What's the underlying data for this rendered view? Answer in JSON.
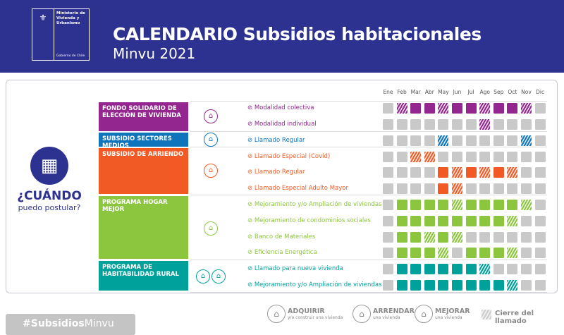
{
  "header": {
    "logo": {
      "ministry": "Ministerio de Vivienda y Urbanismo",
      "government": "Gobierno de Chile"
    },
    "title": "CALENDARIO Subsidios habitacionales",
    "subtitle": "Minvu 2021"
  },
  "left": {
    "icon": "calendar-icon",
    "title": "¿CUÁNDO",
    "subtitle": "puedo postular?"
  },
  "months": [
    "Ene",
    "Feb",
    "Mar",
    "Abr",
    "May",
    "Jun",
    "Jul",
    "Ago",
    "Sep",
    "Oct",
    "Nov",
    "Dic"
  ],
  "state_legend": {
    "0": "cerrado",
    "1": "abierto",
    "2": "cierre del llamado"
  },
  "categories": [
    {
      "name": "FONDO SOLIDARIO DE ELECCIÓN DE VIVIENDA",
      "color": "#93278f",
      "icon": "house-buy-icon",
      "items": [
        {
          "label": "Modalidad colectiva",
          "months": [
            0,
            2,
            1,
            1,
            2,
            1,
            1,
            2,
            1,
            1,
            2,
            0
          ]
        },
        {
          "label": "Modalidad individual",
          "months": [
            0,
            0,
            0,
            0,
            0,
            0,
            0,
            2,
            0,
            0,
            0,
            0
          ]
        }
      ]
    },
    {
      "name": "SUBSIDIO SECTORES MEDIOS",
      "color": "#0f74bc",
      "icon": "house-buy-icon",
      "items": [
        {
          "label": "Llamado Regular",
          "months": [
            0,
            0,
            0,
            0,
            2,
            0,
            0,
            0,
            0,
            0,
            2,
            0
          ]
        }
      ]
    },
    {
      "name": "SUBSIDIO DE ARRIENDO",
      "color": "#f15a24",
      "icon": "house-rent-icon",
      "items": [
        {
          "label": "Llamado Especial (Covid)",
          "months": [
            0,
            0,
            2,
            2,
            0,
            0,
            0,
            0,
            0,
            0,
            0,
            0
          ]
        },
        {
          "label": "Llamado Regular",
          "months": [
            0,
            0,
            0,
            0,
            1,
            2,
            1,
            2,
            1,
            2,
            0,
            0
          ]
        },
        {
          "label": "Llamado Especial Adulto Mayor",
          "months": [
            0,
            0,
            0,
            0,
            1,
            2,
            0,
            0,
            0,
            0,
            0,
            0
          ]
        }
      ]
    },
    {
      "name": "PROGRAMA HOGAR MEJOR",
      "color": "#8cc63f",
      "icon": "house-improve-icon",
      "items": [
        {
          "label": "Mejoramiento y/o Ampliación de viviendas",
          "months": [
            0,
            1,
            1,
            1,
            1,
            2,
            1,
            1,
            1,
            1,
            2,
            0
          ]
        },
        {
          "label": "Mejoramiento de condominios sociales",
          "months": [
            0,
            1,
            1,
            1,
            1,
            1,
            1,
            1,
            1,
            2,
            0,
            0
          ]
        },
        {
          "label": "Banco de Materiales",
          "months": [
            0,
            1,
            1,
            2,
            1,
            2,
            0,
            0,
            0,
            0,
            0,
            0
          ]
        },
        {
          "label": "Eficiencia Energética",
          "months": [
            0,
            1,
            1,
            1,
            2,
            0,
            1,
            1,
            1,
            2,
            0,
            0
          ]
        }
      ]
    },
    {
      "name": "PROGRAMA DE HABITABILIDAD RURAL",
      "color": "#00a19a",
      "icon": "house-buy-icon",
      "items": [
        {
          "label": "Llamado para nueva vivienda",
          "months": [
            0,
            1,
            1,
            1,
            1,
            1,
            1,
            2,
            0,
            0,
            0,
            0
          ]
        },
        {
          "label": "Mejoramiento y/o Ampliación de viviendas",
          "months": [
            0,
            1,
            1,
            1,
            1,
            1,
            1,
            1,
            1,
            2,
            0,
            0
          ]
        }
      ]
    }
  ],
  "footer": {
    "hashtag_prefix": "#Subsidios",
    "hashtag_suffix": "Minvu",
    "legend": [
      {
        "title": "ADQUIRIR",
        "sub": "y/o construir una vivienda",
        "icon": "house-buy-icon"
      },
      {
        "title": "ARRENDAR",
        "sub": "una vivienda",
        "icon": "house-rent-icon"
      },
      {
        "title": "MEJORAR",
        "sub": "una vivienda",
        "icon": "house-improve-icon"
      }
    ],
    "closing": "Cierre del llamado"
  },
  "colors": {
    "header": "#2d3190",
    "closed": "#c9c9c9"
  }
}
